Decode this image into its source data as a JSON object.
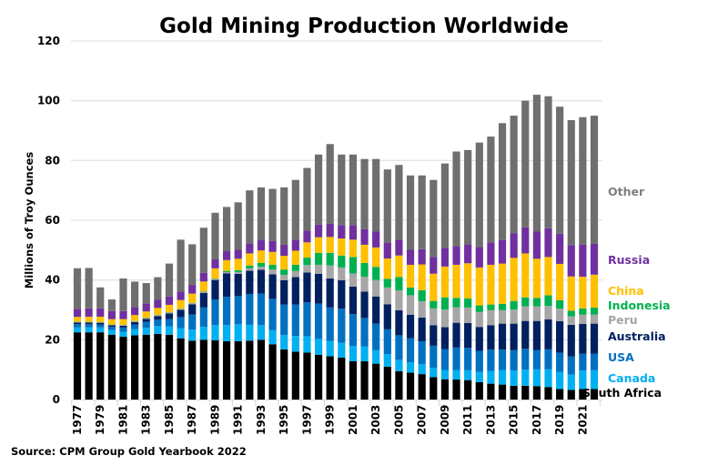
{
  "chart_data": {
    "type": "bar",
    "stacked": true,
    "title": "Gold Mining Production Worldwide",
    "xlabel": "",
    "ylabel": "Millions of Troy Ounces",
    "ylim": [
      0,
      120
    ],
    "yticks": [
      0,
      20,
      40,
      60,
      80,
      100,
      120
    ],
    "grid": true,
    "legend": "right, labels beside last bar",
    "source": "Source: CPM Group Gold Yearbook 2022",
    "categories": [
      1977,
      1978,
      1979,
      1980,
      1981,
      1982,
      1983,
      1984,
      1985,
      1986,
      1987,
      1988,
      1989,
      1990,
      1991,
      1992,
      1993,
      1994,
      1995,
      1996,
      1997,
      1998,
      1999,
      2000,
      2001,
      2002,
      2003,
      2004,
      2005,
      2006,
      2007,
      2008,
      2009,
      2010,
      2011,
      2012,
      2013,
      2014,
      2015,
      2016,
      2017,
      2018,
      2019,
      2020,
      2021,
      2022
    ],
    "xtick_labels": [
      "1977",
      "1979",
      "1981",
      "1983",
      "1985",
      "1987",
      "1989",
      "1991",
      "1993",
      "1995",
      "1997",
      "1999",
      "2001",
      "2003",
      "2005",
      "2007",
      "2009",
      "2011",
      "2013",
      "2015",
      "2017",
      "2019",
      "2021"
    ],
    "series": [
      {
        "name": "South Africa",
        "color": "#000000",
        "label_color": "#000000",
        "values": [
          22.5,
          22.5,
          22.5,
          21.7,
          21,
          21.5,
          21.7,
          22,
          21.7,
          20.5,
          19.7,
          20,
          19.8,
          19.5,
          19.5,
          19.7,
          20,
          18.5,
          16.8,
          16,
          15.7,
          15,
          14.5,
          14,
          12.8,
          12.8,
          12,
          11,
          9.5,
          9,
          8.5,
          7.5,
          6.8,
          6.7,
          6.5,
          5.8,
          5.3,
          5,
          4.6,
          4.6,
          4.5,
          4.2,
          3.5,
          3.2,
          3.5,
          3.5
        ]
      },
      {
        "name": "Canada",
        "color": "#00b0f0",
        "label_color": "#00b0f0",
        "values": [
          1.7,
          1.7,
          1.6,
          1.6,
          1.7,
          2.1,
          2.3,
          2.6,
          2.8,
          3.4,
          3.7,
          4.3,
          5.1,
          5.4,
          5.7,
          5.3,
          4.9,
          4.7,
          4.8,
          5.3,
          5.5,
          5.3,
          5.1,
          5,
          5.1,
          4.9,
          4.5,
          4.2,
          3.8,
          3.4,
          3.3,
          3.1,
          3.1,
          3.2,
          3.3,
          3.4,
          4.3,
          4.9,
          5.1,
          5.4,
          5.6,
          5.9,
          5.7,
          5.2,
          6.2,
          6.3
        ]
      },
      {
        "name": "USA",
        "color": "#0070c0",
        "label_color": "#0070c0",
        "values": [
          1.0,
          1.0,
          1.0,
          1.0,
          1.4,
          1.5,
          2.0,
          2.1,
          2.4,
          3.7,
          5.0,
          6.5,
          8.6,
          9.5,
          9.4,
          10.3,
          10.6,
          10.5,
          10.2,
          10.5,
          11.3,
          11.8,
          11.2,
          11.4,
          10.7,
          9.6,
          8.9,
          8.3,
          8.2,
          8.1,
          7.7,
          7.4,
          7.0,
          7.5,
          7.5,
          7.1,
          7.1,
          6.8,
          6.8,
          7.0,
          6.5,
          6.7,
          6.5,
          6.0,
          5.6,
          5.5
        ]
      },
      {
        "name": "Australia",
        "color": "#002060",
        "label_color": "#002060",
        "values": [
          0.6,
          0.6,
          0.6,
          0.55,
          0.6,
          0.85,
          0.98,
          1.25,
          1.9,
          2.4,
          3.5,
          4.9,
          6.5,
          7.8,
          7.5,
          7.8,
          7.9,
          8.2,
          8.1,
          9.2,
          10,
          10,
          9.7,
          9.5,
          9.2,
          8.8,
          9.1,
          8.4,
          8.4,
          7.9,
          7.9,
          6.9,
          7.3,
          8.3,
          8.3,
          8.0,
          8.2,
          8.7,
          8.9,
          9.3,
          9.7,
          10,
          10.5,
          10.6,
          10.0,
          10.1
        ]
      },
      {
        "name": "Peru",
        "color": "#a6a6a6",
        "label_color": "#a6a6a6",
        "values": [
          0.15,
          0.13,
          0.13,
          0.15,
          0.22,
          0.22,
          0.3,
          0.3,
          0.3,
          0.3,
          0.35,
          0.4,
          0.4,
          0.45,
          0.6,
          0.8,
          1.0,
          1.6,
          1.8,
          2.0,
          2.5,
          3.0,
          4.4,
          4.3,
          4.4,
          5.0,
          5.5,
          5.6,
          6.6,
          6.5,
          5.5,
          5.6,
          5.9,
          5.2,
          5.2,
          5.0,
          5.0,
          4.5,
          4.7,
          4.9,
          4.9,
          4.5,
          4.2,
          2.8,
          3.1,
          3.0
        ]
      },
      {
        "name": "Indonesia",
        "color": "#00b050",
        "label_color": "#00b050",
        "values": [
          0.1,
          0.1,
          0.1,
          0.1,
          0.1,
          0.1,
          0.1,
          0.1,
          0.1,
          0.1,
          0.1,
          0.1,
          0.1,
          0.4,
          0.6,
          0.9,
          1.3,
          1.6,
          1.8,
          2.1,
          2.5,
          4.0,
          4.2,
          4.0,
          5.5,
          4.6,
          4.4,
          2.9,
          4.5,
          2.6,
          3.7,
          2.5,
          4.1,
          3.1,
          3.0,
          2.2,
          1.9,
          2.1,
          2.9,
          3.0,
          2.8,
          3.6,
          2.8,
          1.9,
          2.1,
          2.4
        ]
      },
      {
        "name": "China",
        "color": "#ffc000",
        "label_color": "#ffc000",
        "values": [
          1.6,
          1.7,
          1.8,
          1.8,
          1.9,
          2.0,
          2.1,
          2.3,
          2.5,
          2.9,
          3.1,
          3.3,
          3.4,
          3.6,
          3.8,
          4.1,
          4.2,
          4.3,
          4.6,
          4.7,
          5.1,
          5.2,
          5.3,
          5.7,
          5.8,
          6.1,
          6.5,
          6.8,
          7.2,
          7.6,
          8.6,
          9.1,
          10.3,
          11.1,
          11.8,
          12.7,
          13.3,
          13.5,
          14.4,
          14.7,
          13.1,
          12.8,
          12.2,
          11.5,
          10.6,
          11.0
        ]
      },
      {
        "name": "Russia",
        "color": "#7030a0",
        "label_color": "#7030a0",
        "values": [
          2.7,
          2.8,
          2.8,
          2.7,
          2.7,
          2.7,
          2.7,
          2.7,
          2.8,
          2.9,
          2.9,
          2.9,
          3.0,
          3.0,
          3.0,
          3.3,
          3.6,
          3.6,
          3.7,
          3.7,
          4.0,
          4.2,
          4.4,
          4.4,
          4.9,
          5.2,
          5.3,
          5.3,
          5.3,
          5.0,
          5.1,
          5.6,
          6.3,
          6.2,
          6.3,
          6.8,
          7.5,
          7.9,
          8.3,
          8.7,
          9.1,
          9.6,
          10.1,
          10.5,
          10.7,
          10.3
        ]
      },
      {
        "name": "Other",
        "color": "#6f6f6f",
        "label_color": "#7f7f7f",
        "values": [
          13.6,
          13.5,
          7.0,
          3.9,
          10.9,
          8.5,
          6.8,
          7.6,
          11.0,
          17.3,
          13.6,
          15.1,
          15.6,
          14.8,
          15.9,
          17.8,
          17.5,
          17.5,
          19.2,
          20.0,
          20.9,
          23.5,
          26.7,
          23.7,
          23.6,
          23.5,
          24.3,
          24.5,
          25.0,
          24.9,
          24.7,
          25.8,
          28.2,
          31.7,
          31.6,
          35.0,
          35.4,
          39.1,
          39.3,
          42.4,
          45.8,
          44.2,
          42.5,
          41.8,
          42.7,
          42.9
        ]
      }
    ]
  }
}
